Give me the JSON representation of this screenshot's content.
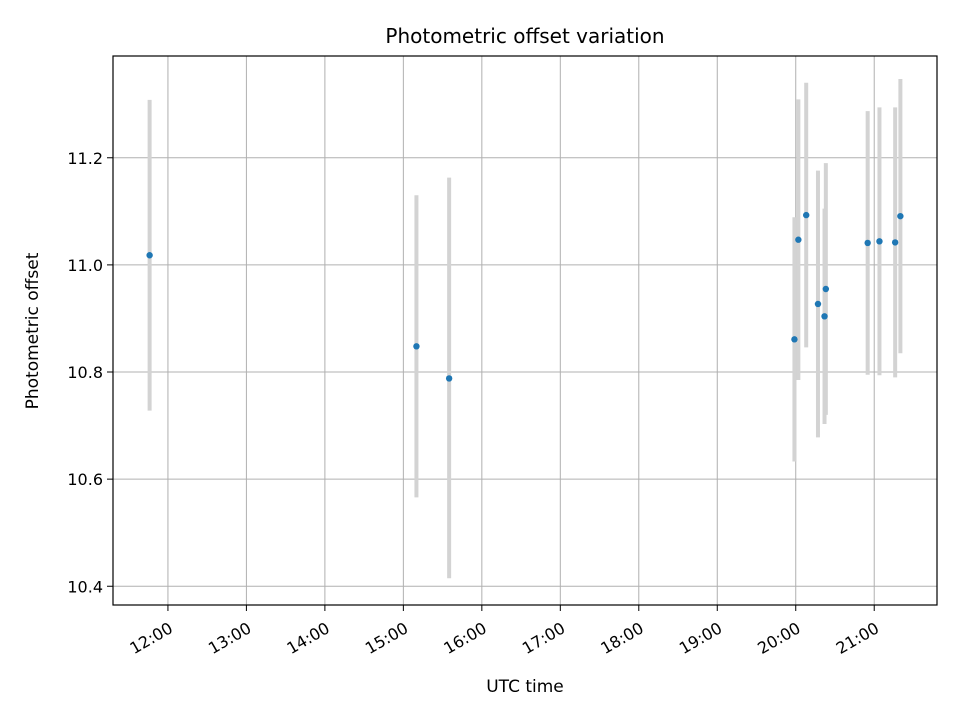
{
  "chart_data": {
    "type": "scatter",
    "title": "Photometric offset variation",
    "xlabel": "UTC time",
    "ylabel": "Photometric offset",
    "grid": true,
    "x_tick_labels": [
      "12:00",
      "13:00",
      "14:00",
      "15:00",
      "16:00",
      "17:00",
      "18:00",
      "19:00",
      "20:00",
      "21:00"
    ],
    "y_tick_labels": [
      "10.4",
      "10.6",
      "10.8",
      "11.0",
      "11.2"
    ],
    "x_ticks": [
      "12:00",
      "13:00",
      "14:00",
      "15:00",
      "16:00",
      "17:00",
      "18:00",
      "19:00",
      "20:00",
      "21:00"
    ],
    "y_ticks": [
      10.4,
      10.6,
      10.8,
      11.0,
      11.2
    ],
    "xlim": [
      "11:18",
      "21:48"
    ],
    "ylim": [
      10.365,
      11.39
    ],
    "marker_color": "#1f77b4",
    "errorbar_color": "#d3d3d3",
    "points": [
      {
        "x": "11:46",
        "y": 11.018,
        "low": 10.728,
        "high": 11.308
      },
      {
        "x": "15:10",
        "y": 10.848,
        "low": 10.566,
        "high": 11.13
      },
      {
        "x": "15:35",
        "y": 10.788,
        "low": 10.415,
        "high": 11.163
      },
      {
        "x": "19:59",
        "y": 10.861,
        "low": 10.633,
        "high": 11.089
      },
      {
        "x": "20:02",
        "y": 11.047,
        "low": 10.785,
        "high": 11.309
      },
      {
        "x": "20:08",
        "y": 11.093,
        "low": 10.846,
        "high": 11.34
      },
      {
        "x": "20:17",
        "y": 10.927,
        "low": 10.678,
        "high": 11.176
      },
      {
        "x": "20:22",
        "y": 10.904,
        "low": 10.703,
        "high": 11.105
      },
      {
        "x": "20:23",
        "y": 10.955,
        "low": 10.72,
        "high": 11.19
      },
      {
        "x": "20:55",
        "y": 11.041,
        "low": 10.795,
        "high": 11.287
      },
      {
        "x": "21:04",
        "y": 11.044,
        "low": 10.794,
        "high": 11.294
      },
      {
        "x": "21:16",
        "y": 11.042,
        "low": 10.79,
        "high": 11.294
      },
      {
        "x": "21:20",
        "y": 11.091,
        "low": 10.835,
        "high": 11.347
      }
    ]
  }
}
